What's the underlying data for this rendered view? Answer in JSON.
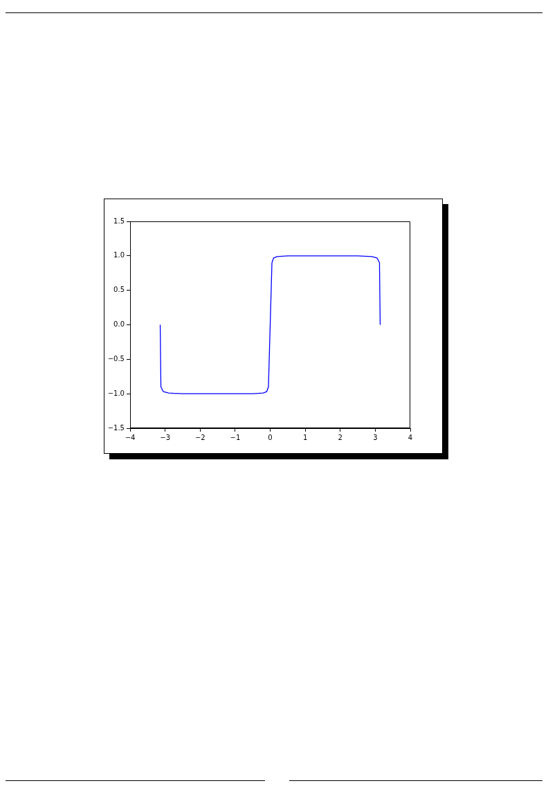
{
  "chart_data": {
    "type": "line",
    "x": [
      -3.14,
      -3.12,
      -3.05,
      -2.9,
      -2.5,
      -2.0,
      -1.5,
      -1.0,
      -0.5,
      -0.2,
      -0.1,
      -0.05,
      0,
      0.05,
      0.1,
      0.2,
      0.5,
      1.0,
      1.5,
      2.0,
      2.5,
      2.9,
      3.05,
      3.12,
      3.14
    ],
    "series": [
      {
        "color": "#0000ff",
        "values": [
          0,
          -0.9,
          -0.97,
          -0.99,
          -1.0,
          -1.0,
          -1.0,
          -1.0,
          -1.0,
          -0.99,
          -0.97,
          -0.9,
          0,
          0.9,
          0.97,
          0.99,
          1.0,
          1.0,
          1.0,
          1.0,
          1.0,
          0.99,
          0.97,
          0.9,
          0
        ]
      }
    ],
    "xlim": [
      -4,
      4
    ],
    "ylim": [
      -1.5,
      1.5
    ],
    "xticks": [
      {
        "value": -4,
        "label": "−4"
      },
      {
        "value": -3,
        "label": "−3"
      },
      {
        "value": -2,
        "label": "−2"
      },
      {
        "value": -1,
        "label": "−1"
      },
      0,
      1,
      2,
      3,
      4
    ],
    "yticks": [
      {
        "value": -1.5,
        "label": "−1.5"
      },
      {
        "value": -1,
        "label": "−1.0"
      },
      {
        "value": -0.5,
        "label": "−0.5"
      },
      {
        "value": 0,
        "label": "0.0"
      },
      {
        "value": 0.5,
        "label": "0.5"
      },
      {
        "value": 1,
        "label": "1.0"
      },
      {
        "value": 1.5,
        "label": "1.5"
      }
    ],
    "grid": false
  }
}
